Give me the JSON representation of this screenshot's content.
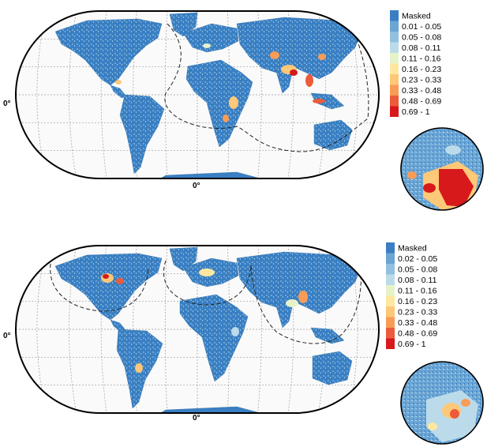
{
  "colors": {
    "ocean": "#fafafa",
    "graticule": "#9a9a9a",
    "frame": "#000000",
    "land_base": "#3a7fc3",
    "hotspot_orange": "#f4a460",
    "hotspot_red": "#d7191c"
  },
  "maps": [
    {
      "id": "top-map",
      "lat_label": "0°",
      "lon_label": "0°",
      "legend": [
        {
          "label": "Masked",
          "color": "#3a7fc3"
        },
        {
          "label": "0.01 - 0.05",
          "color": "#6aa5d4"
        },
        {
          "label": "0.05 - 0.08",
          "color": "#92c0df"
        },
        {
          "label": "0.08 - 0.11",
          "color": "#bcdbea"
        },
        {
          "label": "0.11 - 0.16",
          "color": "#e6f3c9"
        },
        {
          "label": "0.16 - 0.23",
          "color": "#fee8a0"
        },
        {
          "label": "0.23 - 0.33",
          "color": "#fdc878"
        },
        {
          "label": "0.33 - 0.48",
          "color": "#f99c56"
        },
        {
          "label": "0.48 - 0.69",
          "color": "#ec5b3a"
        },
        {
          "label": "0.69 - 1",
          "color": "#d7191c"
        }
      ]
    },
    {
      "id": "bottom-map",
      "lat_label": "0°",
      "lon_label": "0°",
      "legend": [
        {
          "label": "Masked",
          "color": "#3a7fc3"
        },
        {
          "label": "0.02 - 0.05",
          "color": "#6aa5d4"
        },
        {
          "label": "0.05 - 0.08",
          "color": "#92c0df"
        },
        {
          "label": "0.08 - 0.11",
          "color": "#bcdbea"
        },
        {
          "label": "0.11 - 0.16",
          "color": "#e6f3c9"
        },
        {
          "label": "0.16 - 0.23",
          "color": "#fee8a0"
        },
        {
          "label": "0.23 - 0.33",
          "color": "#fdc878"
        },
        {
          "label": "0.33 - 0.48",
          "color": "#f99c56"
        },
        {
          "label": "0.48 - 0.69",
          "color": "#ec5b3a"
        },
        {
          "label": "0.69 - 1",
          "color": "#d7191c"
        }
      ]
    }
  ]
}
